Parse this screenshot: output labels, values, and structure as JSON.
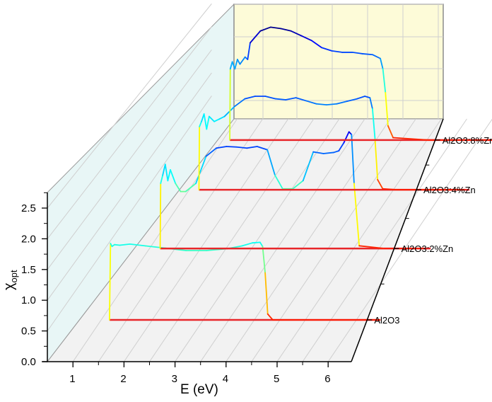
{
  "chart_data": {
    "type": "line",
    "subtype": "3d-waterfall",
    "title": "",
    "xlabel": "E (eV)",
    "ylabel": "χ_opt",
    "ylabel_main": "χ",
    "ylabel_sub": "opt",
    "xlim": [
      0.5,
      6.4
    ],
    "ylim": [
      0.0,
      2.75
    ],
    "x_ticks": [
      "1",
      "2",
      "3",
      "4",
      "5",
      "6"
    ],
    "y_ticks": [
      "0.0",
      "0.5",
      "1.0",
      "1.5",
      "2.0",
      "2.5"
    ],
    "z_categories": [
      "Al2O3",
      "Al2O3:2%Zn",
      "Al2O3:4%Zn",
      "Al2O3:8%Zn"
    ],
    "colormap": "jet (red low → yellow → green → cyan → blue high)",
    "walls": {
      "back_color": "#fdfbd8",
      "side_color": "#e8f6f6",
      "floor_color": "#f2f2f2"
    },
    "grid": true,
    "series": [
      {
        "name": "Al2O3",
        "x": [
          1.1,
          1.12,
          1.15,
          1.2,
          1.3,
          1.5,
          1.8,
          2.2,
          2.6,
          3.0,
          3.4,
          3.7,
          3.9,
          4.05,
          4.1,
          4.15,
          4.2,
          4.3,
          4.5,
          5.0,
          6.0,
          6.4
        ],
        "y": [
          0.0,
          1.3,
          1.25,
          1.28,
          1.27,
          1.29,
          1.26,
          1.22,
          1.18,
          1.18,
          1.21,
          1.26,
          1.31,
          1.32,
          1.25,
          0.8,
          0.1,
          0.0,
          0.0,
          0.0,
          0.0,
          0.0
        ]
      },
      {
        "name": "Al2O3:2%Zn",
        "x": [
          1.1,
          1.11,
          1.15,
          1.2,
          1.25,
          1.3,
          1.4,
          1.5,
          1.6,
          1.8,
          2.0,
          2.2,
          2.4,
          2.6,
          2.8,
          3.0,
          3.2,
          3.35,
          3.5,
          3.7,
          3.9,
          4.1,
          4.3,
          4.5,
          4.6,
          4.7,
          4.8,
          4.85,
          4.9,
          5.0,
          5.5,
          6.3
        ],
        "y": [
          0.0,
          1.2,
          1.35,
          1.55,
          1.25,
          1.45,
          1.2,
          1.05,
          1.05,
          1.2,
          1.7,
          1.85,
          1.88,
          1.87,
          1.85,
          1.88,
          1.82,
          1.35,
          1.1,
          1.1,
          1.25,
          1.78,
          1.75,
          1.77,
          1.8,
          1.95,
          2.15,
          2.1,
          1.2,
          0.05,
          0.0,
          0.0
        ]
      },
      {
        "name": "Al2O3:4%Zn",
        "x": [
          1.1,
          1.11,
          1.15,
          1.2,
          1.25,
          1.3,
          1.4,
          1.5,
          1.6,
          1.8,
          2.0,
          2.2,
          2.4,
          2.6,
          2.8,
          3.0,
          3.2,
          3.4,
          3.6,
          3.8,
          4.0,
          4.2,
          4.35,
          4.45,
          4.5,
          4.55,
          4.6,
          4.7,
          5.0,
          5.5,
          6.3
        ],
        "y": [
          0.0,
          1.25,
          1.35,
          1.5,
          1.2,
          1.45,
          1.35,
          1.4,
          1.45,
          1.65,
          1.8,
          1.85,
          1.85,
          1.8,
          1.78,
          1.82,
          1.76,
          1.7,
          1.68,
          1.7,
          1.75,
          1.8,
          1.85,
          1.82,
          1.6,
          1.0,
          0.2,
          0.02,
          0.0,
          0.0,
          0.0
        ]
      },
      {
        "name": "Al2O3:8%Zn",
        "x": [
          1.1,
          1.11,
          1.15,
          1.2,
          1.25,
          1.3,
          1.4,
          1.45,
          1.5,
          1.7,
          1.9,
          2.1,
          2.3,
          2.5,
          2.7,
          2.9,
          3.1,
          3.3,
          3.5,
          3.7,
          3.9,
          4.05,
          4.1,
          4.15,
          4.2,
          4.3,
          5.0,
          6.4
        ],
        "y": [
          0.0,
          1.5,
          1.65,
          1.5,
          1.7,
          1.6,
          1.75,
          1.7,
          2.05,
          2.3,
          2.38,
          2.35,
          2.3,
          2.2,
          2.1,
          1.95,
          1.88,
          1.85,
          1.85,
          1.82,
          1.8,
          1.72,
          1.5,
          1.0,
          0.3,
          0.05,
          0.0,
          0.0
        ]
      }
    ]
  }
}
